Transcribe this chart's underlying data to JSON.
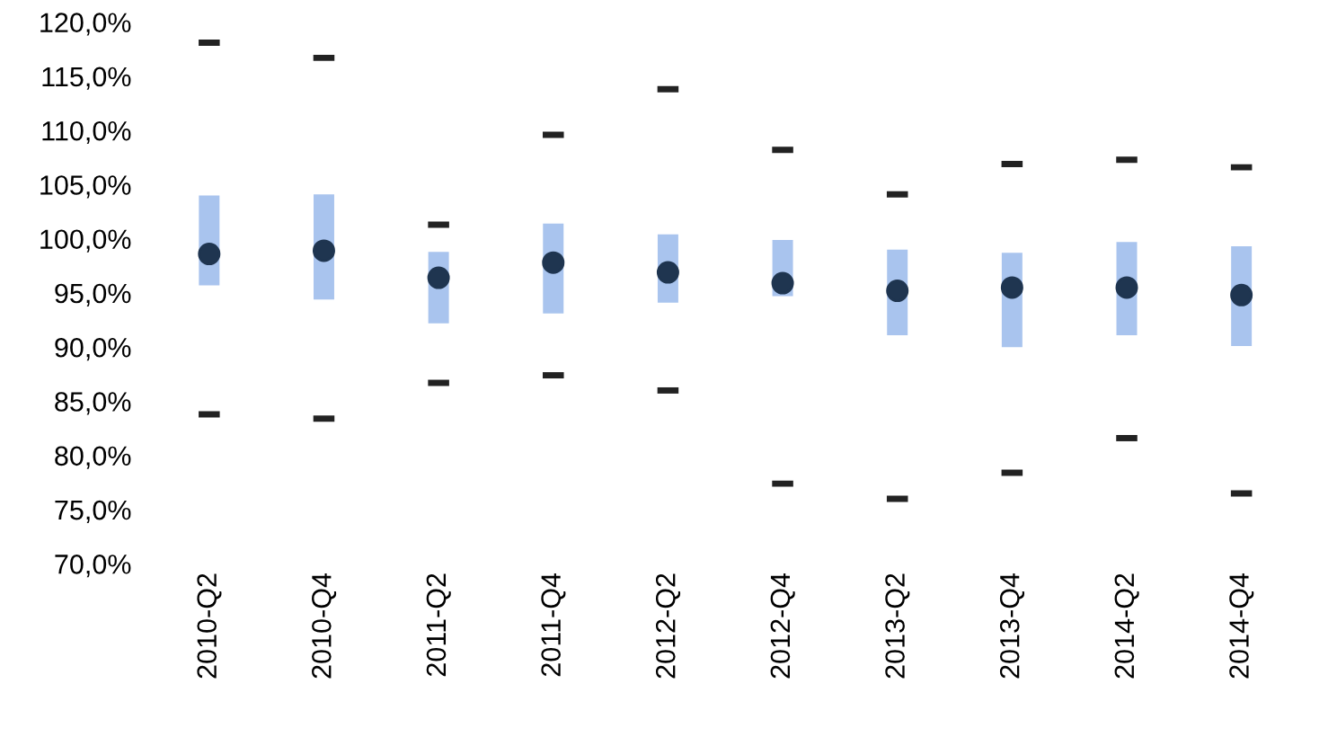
{
  "chart_data": {
    "type": "box",
    "categories": [
      "2010-Q2",
      "2010-Q4",
      "2011-Q2",
      "2011-Q4",
      "2012-Q2",
      "2012-Q4",
      "2013-Q2",
      "2013-Q4",
      "2014-Q2",
      "2014-Q4"
    ],
    "color": "#a9c4ee",
    "boxes": [
      {
        "low": 83.8,
        "q1": 95.7,
        "median": 98.6,
        "q3": 104.0,
        "high": 118.1
      },
      {
        "low": 83.4,
        "q1": 94.4,
        "median": 98.9,
        "q3": 104.1,
        "high": 116.7
      },
      {
        "low": 86.7,
        "q1": 92.2,
        "median": 96.4,
        "q3": 98.8,
        "high": 101.3
      },
      {
        "low": 87.4,
        "q1": 93.1,
        "median": 97.8,
        "q3": 101.4,
        "high": 109.6
      },
      {
        "low": 86.0,
        "q1": 94.1,
        "median": 96.9,
        "q3": 100.4,
        "high": 113.8
      },
      {
        "low": 77.4,
        "q1": 94.7,
        "median": 95.9,
        "q3": 99.9,
        "high": 108.2
      },
      {
        "low": 76.0,
        "q1": 91.1,
        "median": 95.2,
        "q3": 99.0,
        "high": 104.1
      },
      {
        "low": 78.4,
        "q1": 90.0,
        "median": 95.5,
        "q3": 98.7,
        "high": 106.9
      },
      {
        "low": 81.6,
        "q1": 91.1,
        "median": 95.5,
        "q3": 99.7,
        "high": 107.3
      },
      {
        "low": 76.5,
        "q1": 90.1,
        "median": 94.8,
        "q3": 99.3,
        "high": 106.6
      }
    ],
    "ylim": [
      70,
      120
    ],
    "yticks": [
      {
        "value": 70,
        "label": "70,0%"
      },
      {
        "value": 75,
        "label": "75,0%"
      },
      {
        "value": 80,
        "label": "80,0%"
      },
      {
        "value": 85,
        "label": "85,0%"
      },
      {
        "value": 90,
        "label": "90,0%"
      },
      {
        "value": 95,
        "label": "95,0%"
      },
      {
        "value": 100,
        "label": "100,0%"
      },
      {
        "value": 105,
        "label": "105,0%"
      },
      {
        "value": 110,
        "label": "110,0%"
      },
      {
        "value": 115,
        "label": "115,0%"
      },
      {
        "value": 120,
        "label": "120,0%"
      }
    ]
  }
}
